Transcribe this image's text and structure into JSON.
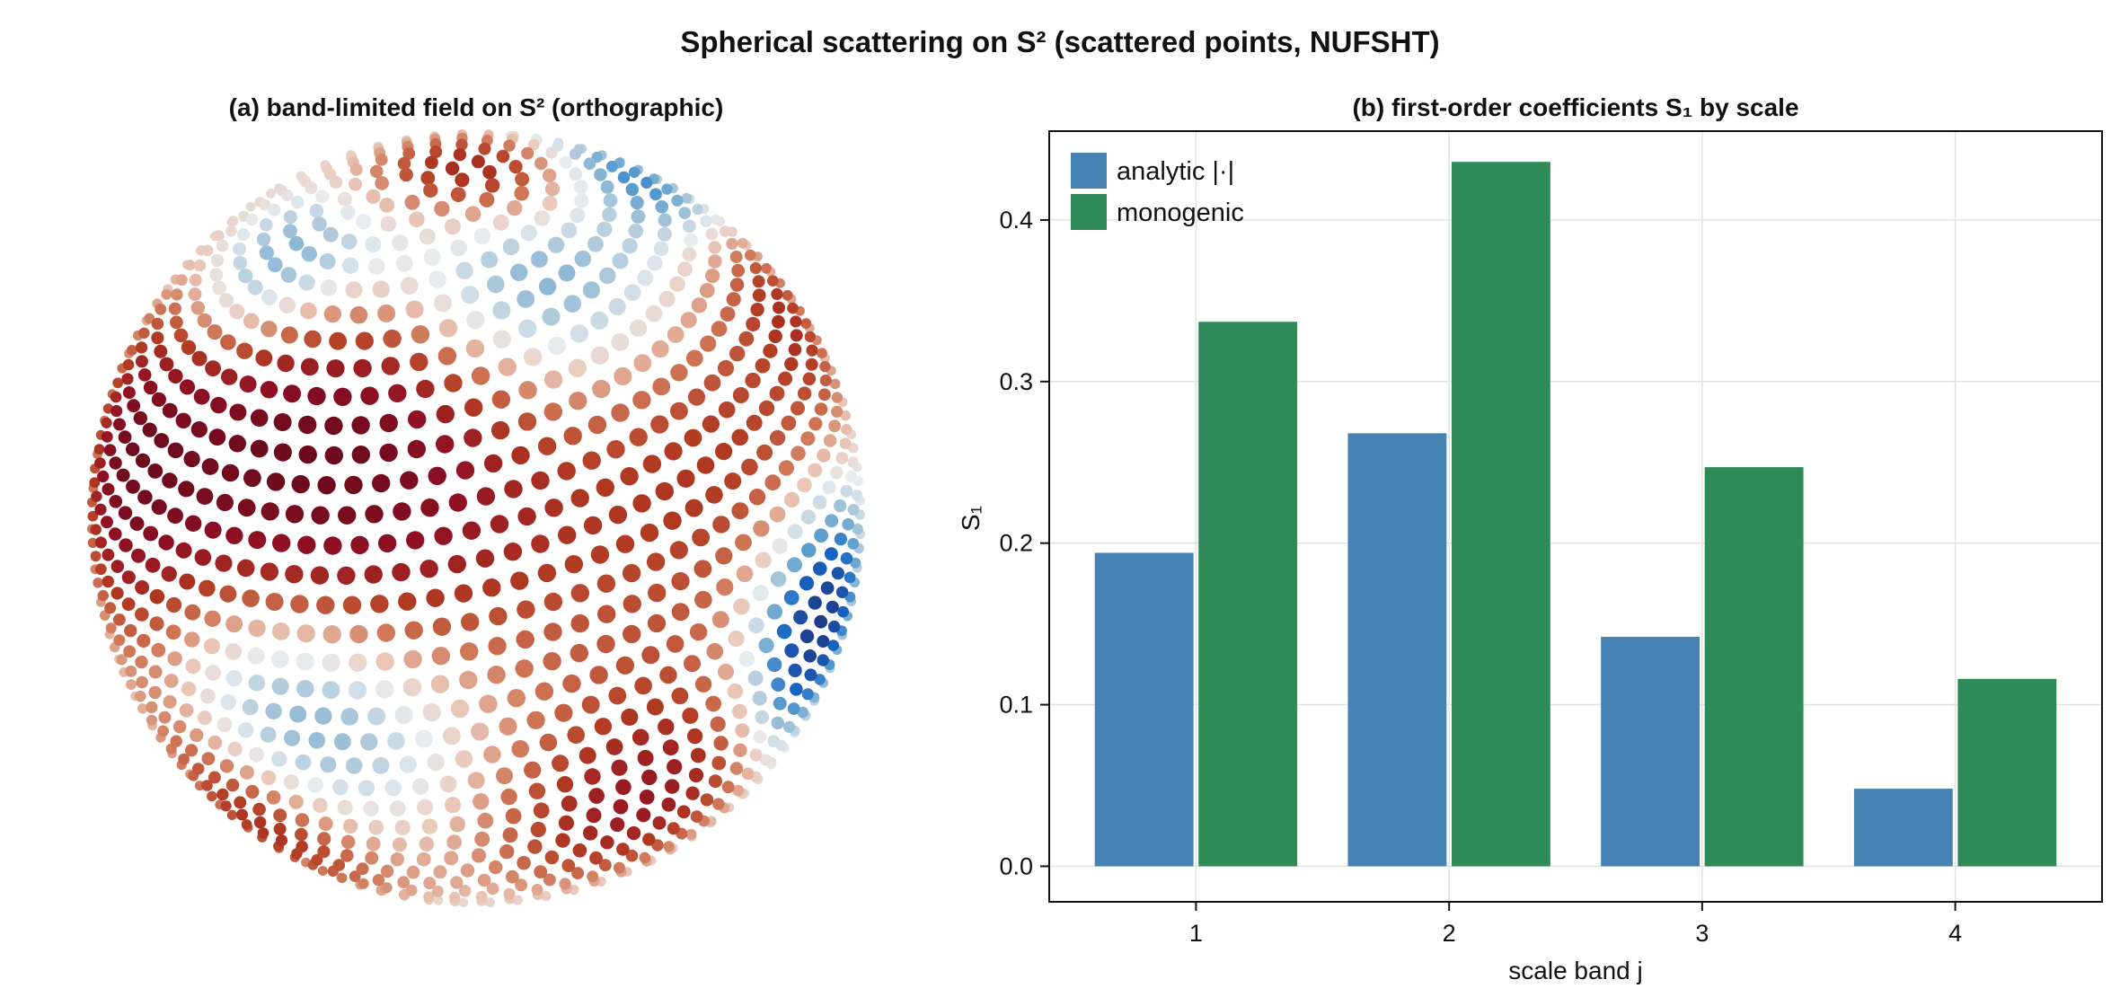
{
  "figure_title": "Spherical scattering on S² (scattered points, NUFSHT)",
  "panel_a": {
    "title": "(a) band-limited field on S² (orthographic)",
    "colormap": [
      "#0b0e2e",
      "#1f3f8f",
      "#1766c4",
      "#5fa0cf",
      "#a9c6d9",
      "#e8ecef",
      "#e9c4b4",
      "#cf7656",
      "#b13a22",
      "#8f0f24",
      "#4a0515"
    ]
  },
  "chart_data": {
    "type": "bar",
    "title": "(b) first-order coefficients S₁ by scale",
    "xlabel": "scale band j",
    "ylabel": "S₁",
    "categories": [
      "1",
      "2",
      "3",
      "4"
    ],
    "series": [
      {
        "name": "analytic |·|",
        "color": "#4682b4",
        "values": [
          0.194,
          0.268,
          0.142,
          0.048
        ]
      },
      {
        "name": "monogenic",
        "color": "#2e8b57",
        "values": [
          0.337,
          0.436,
          0.247,
          0.116
        ]
      }
    ],
    "ylim": [
      -0.022,
      0.455
    ],
    "yticks": [
      0.0,
      0.1,
      0.2,
      0.3,
      0.4
    ],
    "ytick_labels": [
      "0.0",
      "0.1",
      "0.2",
      "0.3",
      "0.4"
    ],
    "grid": true,
    "legend_position": "top-left"
  }
}
